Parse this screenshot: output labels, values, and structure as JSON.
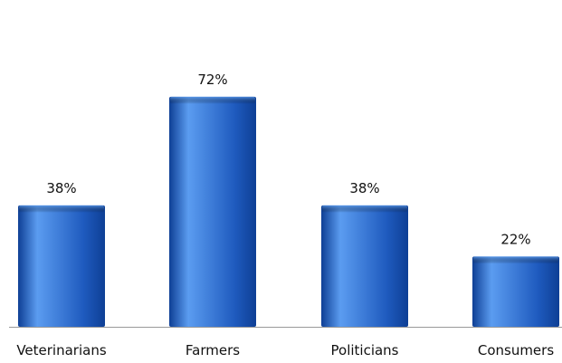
{
  "chart_data": {
    "type": "bar",
    "categories": [
      "Veterinarians",
      "Farmers",
      "Politicians",
      "Consumers"
    ],
    "values": [
      38,
      72,
      38,
      22
    ],
    "data_labels": [
      "38%",
      "72%",
      "38%",
      "22%"
    ],
    "unit": "%",
    "ylim": [
      0,
      100
    ],
    "grid": false,
    "legend": "none",
    "bar_color": "#1f5bbf",
    "bar_highlight_color": "#5b9cf0",
    "bar_shadow_color": "#0e3f95",
    "axis_color": "#999999"
  }
}
